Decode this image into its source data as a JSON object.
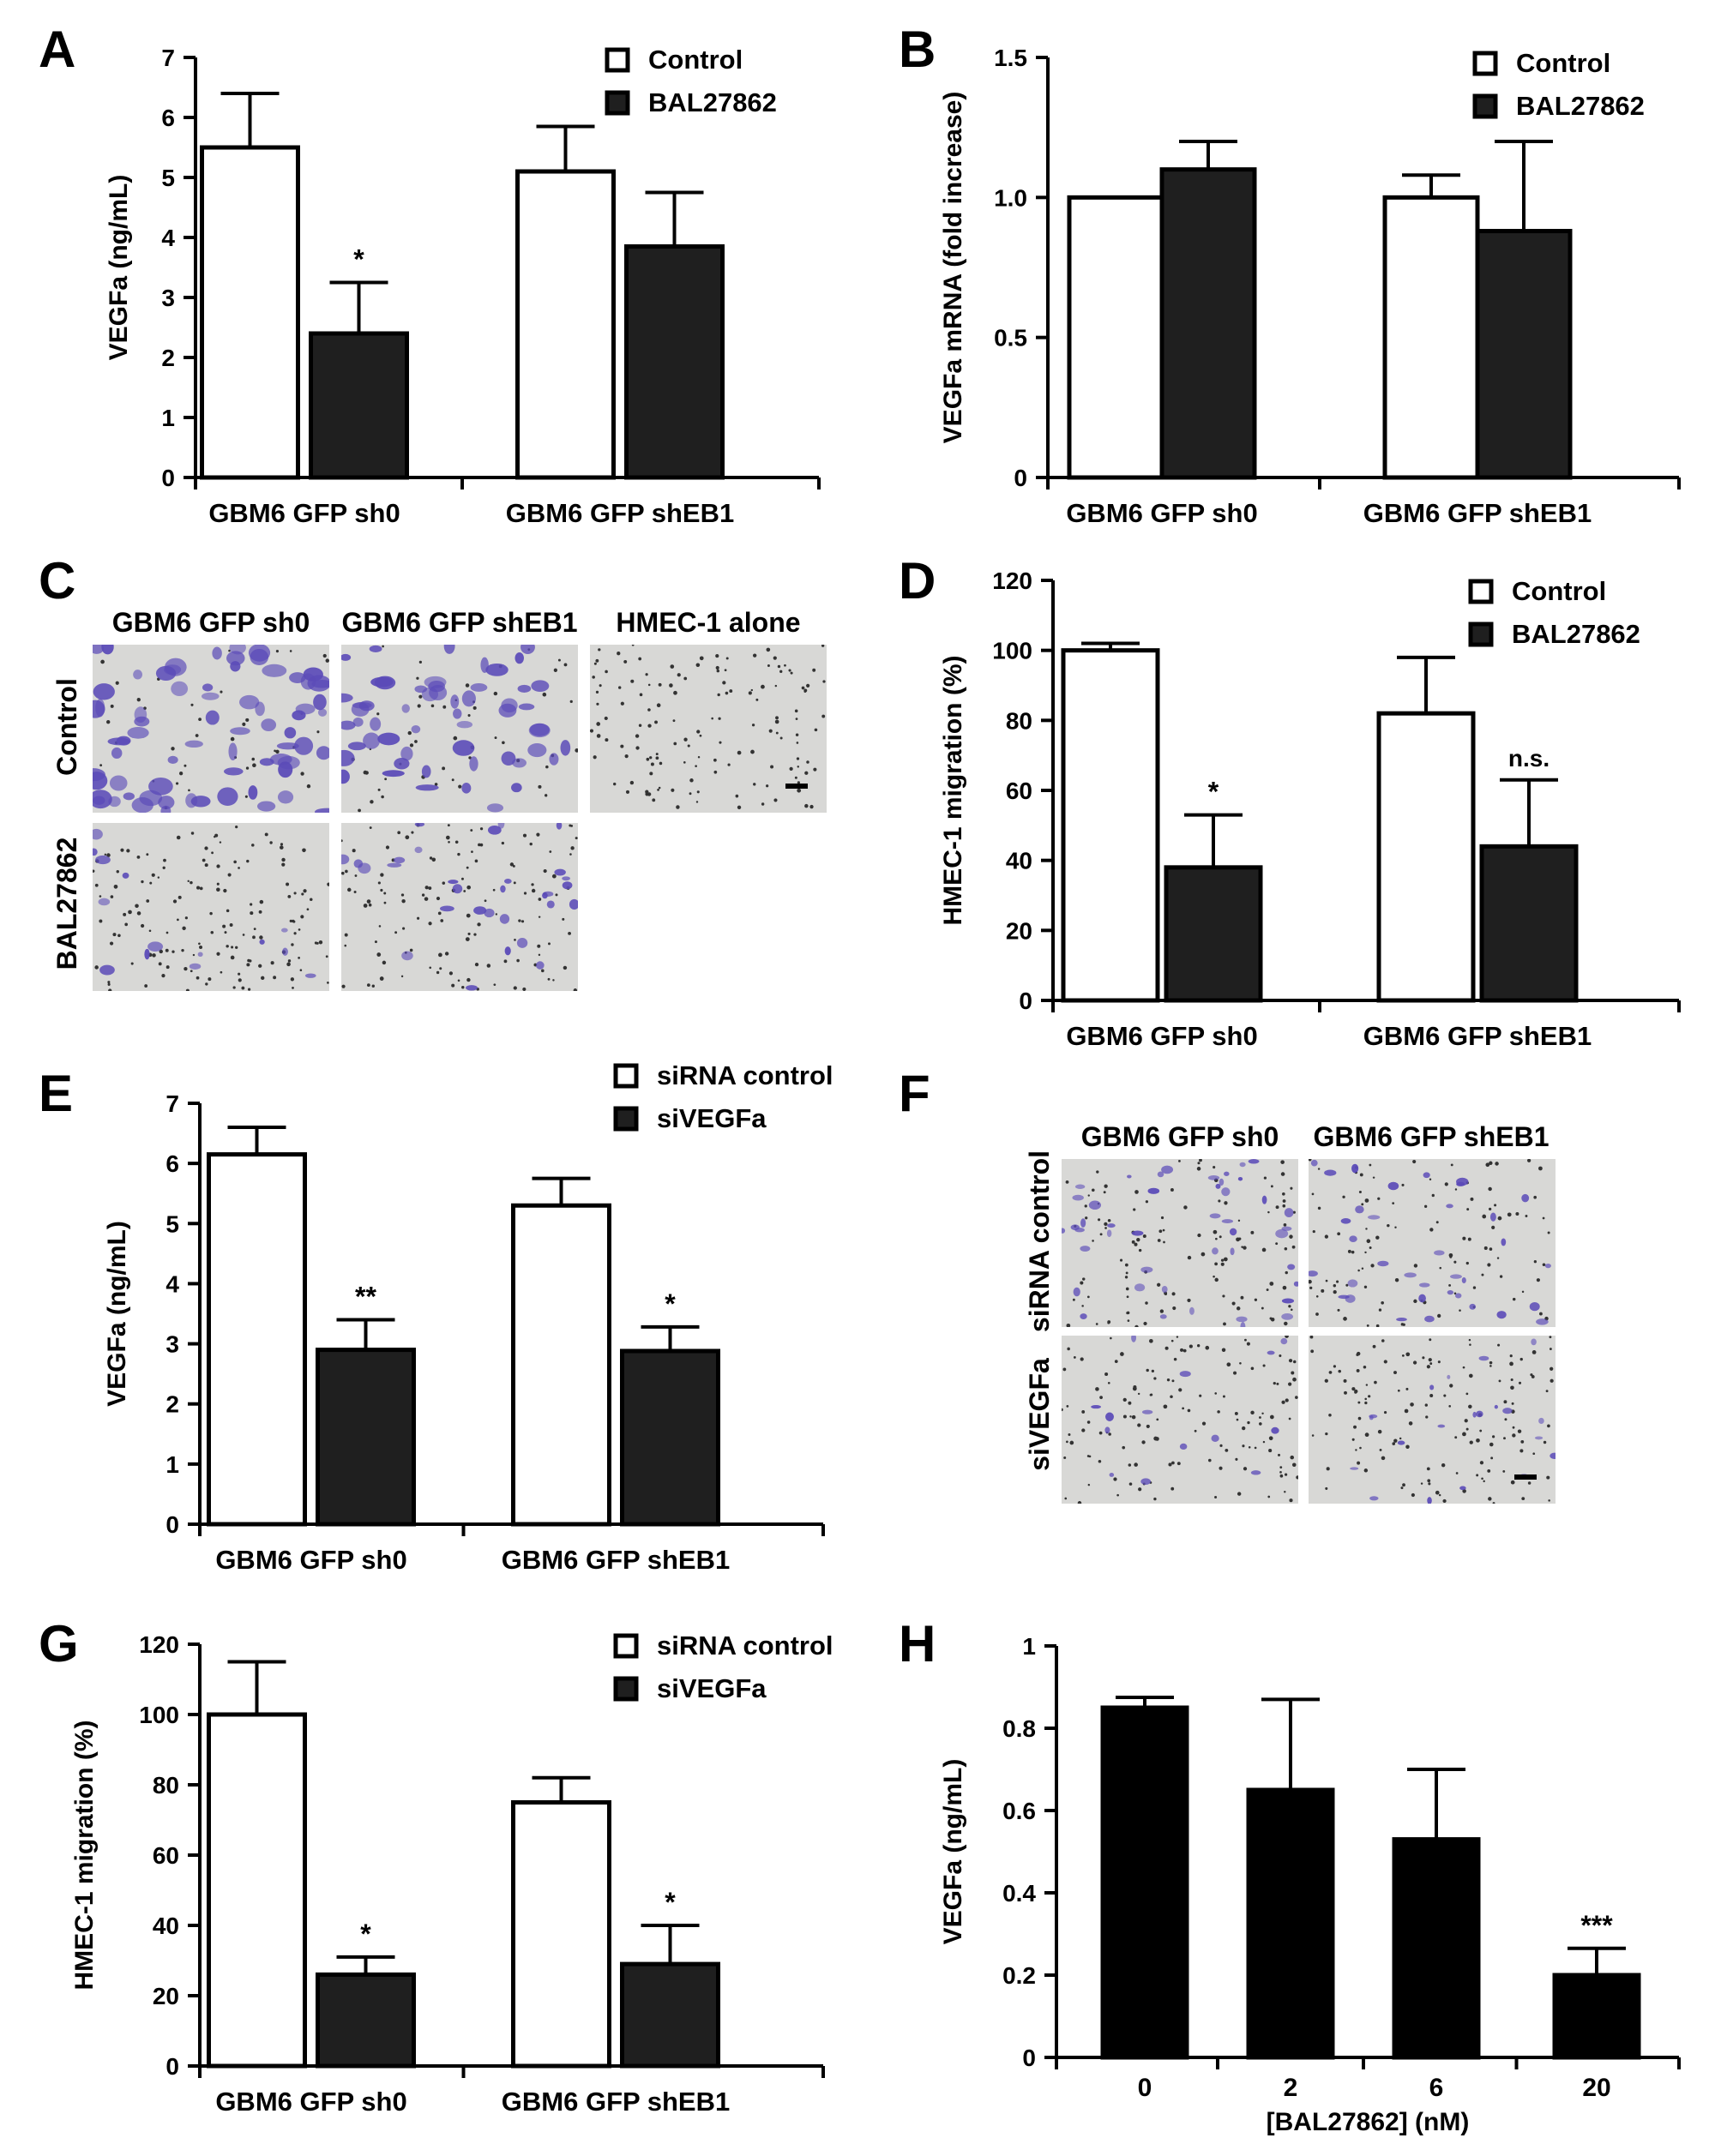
{
  "panel_labels": [
    "A",
    "B",
    "C",
    "D",
    "E",
    "F",
    "G",
    "H"
  ],
  "colors": {
    "control_fill": "#ffffff",
    "treated_fill": "#1f1f1f",
    "stain": "#5b4bb8",
    "micro_bg": "#d8d8d6"
  },
  "chart_data": [
    {
      "id": "A",
      "type": "bar",
      "ylabel": "VEGFa (ng/mL)",
      "ylim": [
        0,
        7
      ],
      "yticks": [
        0,
        1,
        2,
        3,
        4,
        5,
        6,
        7
      ],
      "categories": [
        "GBM6 GFP sh0",
        "GBM6 GFP shEB1"
      ],
      "series": [
        {
          "name": "Control",
          "values": [
            5.5,
            5.1
          ],
          "errors": [
            0.9,
            0.75
          ],
          "marks": [
            "",
            ""
          ]
        },
        {
          "name": "BAL27862",
          "values": [
            2.4,
            3.85
          ],
          "errors": [
            0.85,
            0.9
          ],
          "marks": [
            "*",
            ""
          ]
        }
      ],
      "legend": "top-right"
    },
    {
      "id": "B",
      "type": "bar",
      "ylabel": "VEGFa mRNA (fold increase)",
      "ylim": [
        0,
        1.5
      ],
      "yticks": [
        0,
        0.5,
        1.0,
        1.5
      ],
      "ytick_labels": [
        "0",
        "0.5",
        "1.0",
        "1.5"
      ],
      "categories": [
        "GBM6 GFP sh0",
        "GBM6 GFP shEB1"
      ],
      "series": [
        {
          "name": "Control",
          "values": [
            1.0,
            1.0
          ],
          "errors": [
            0.0,
            0.08
          ],
          "marks": [
            "",
            ""
          ]
        },
        {
          "name": "BAL27862",
          "values": [
            1.1,
            0.88
          ],
          "errors": [
            0.1,
            0.32
          ],
          "marks": [
            "",
            ""
          ]
        }
      ],
      "legend": "top-right"
    },
    {
      "id": "D",
      "type": "bar",
      "ylabel": "HMEC-1 migration (%)",
      "ylim": [
        0,
        120
      ],
      "yticks": [
        0,
        20,
        40,
        60,
        80,
        100,
        120
      ],
      "categories": [
        "GBM6 GFP sh0",
        "GBM6 GFP shEB1"
      ],
      "series": [
        {
          "name": "Control",
          "values": [
            100,
            82
          ],
          "errors": [
            2,
            16
          ],
          "marks": [
            "",
            ""
          ]
        },
        {
          "name": "BAL27862",
          "values": [
            38,
            44
          ],
          "errors": [
            15,
            19
          ],
          "marks": [
            "*",
            "n.s."
          ]
        }
      ],
      "legend": "top-right"
    },
    {
      "id": "E",
      "type": "bar",
      "ylabel": "VEGFa (ng/mL)",
      "ylim": [
        0,
        7
      ],
      "yticks": [
        0,
        1,
        2,
        3,
        4,
        5,
        6,
        7
      ],
      "categories": [
        "GBM6 GFP sh0",
        "GBM6 GFP shEB1"
      ],
      "series": [
        {
          "name": "siRNA control",
          "values": [
            6.15,
            5.3
          ],
          "errors": [
            0.45,
            0.45
          ],
          "marks": [
            "",
            ""
          ]
        },
        {
          "name": "siVEGFa",
          "values": [
            2.9,
            2.88
          ],
          "errors": [
            0.5,
            0.4
          ],
          "marks": [
            "**",
            "*"
          ]
        }
      ],
      "legend": "top-right"
    },
    {
      "id": "G",
      "type": "bar",
      "ylabel": "HMEC-1 migration (%)",
      "ylim": [
        0,
        120
      ],
      "yticks": [
        0,
        20,
        40,
        60,
        80,
        100,
        120
      ],
      "categories": [
        "GBM6 GFP sh0",
        "GBM6 GFP shEB1"
      ],
      "series": [
        {
          "name": "siRNA control",
          "values": [
            100,
            75
          ],
          "errors": [
            15,
            7
          ],
          "marks": [
            "",
            ""
          ]
        },
        {
          "name": "siVEGFa",
          "values": [
            26,
            29
          ],
          "errors": [
            5,
            11
          ],
          "marks": [
            "*",
            "*"
          ]
        }
      ],
      "legend": "top-right"
    },
    {
      "id": "H",
      "type": "bar",
      "ylabel": "VEGFa (ng/mL)",
      "xlabel": "[BAL27862] (nM)",
      "ylim": [
        0,
        1
      ],
      "yticks": [
        0,
        0.2,
        0.4,
        0.6,
        0.8,
        1
      ],
      "ytick_labels": [
        "0",
        "0.2",
        "0.4",
        "0.6",
        "0.8",
        "1"
      ],
      "categories": [
        "0",
        "2",
        "6",
        "20"
      ],
      "series": [
        {
          "values": [
            0.85,
            0.65,
            0.53,
            0.2
          ],
          "errors": [
            0.025,
            0.22,
            0.17,
            0.065
          ],
          "marks": [
            "",
            "",
            "",
            "***"
          ]
        }
      ]
    }
  ],
  "micrographs": [
    {
      "id": "C",
      "columns": [
        "GBM6 GFP sh0",
        "GBM6 GFP shEB1",
        "HMEC-1 alone"
      ],
      "rows": [
        "Control",
        "BAL27862"
      ]
    },
    {
      "id": "F",
      "columns": [
        "GBM6 GFP sh0",
        "GBM6 GFP shEB1"
      ],
      "rows": [
        "siRNA control",
        "siVEGFa"
      ]
    }
  ]
}
